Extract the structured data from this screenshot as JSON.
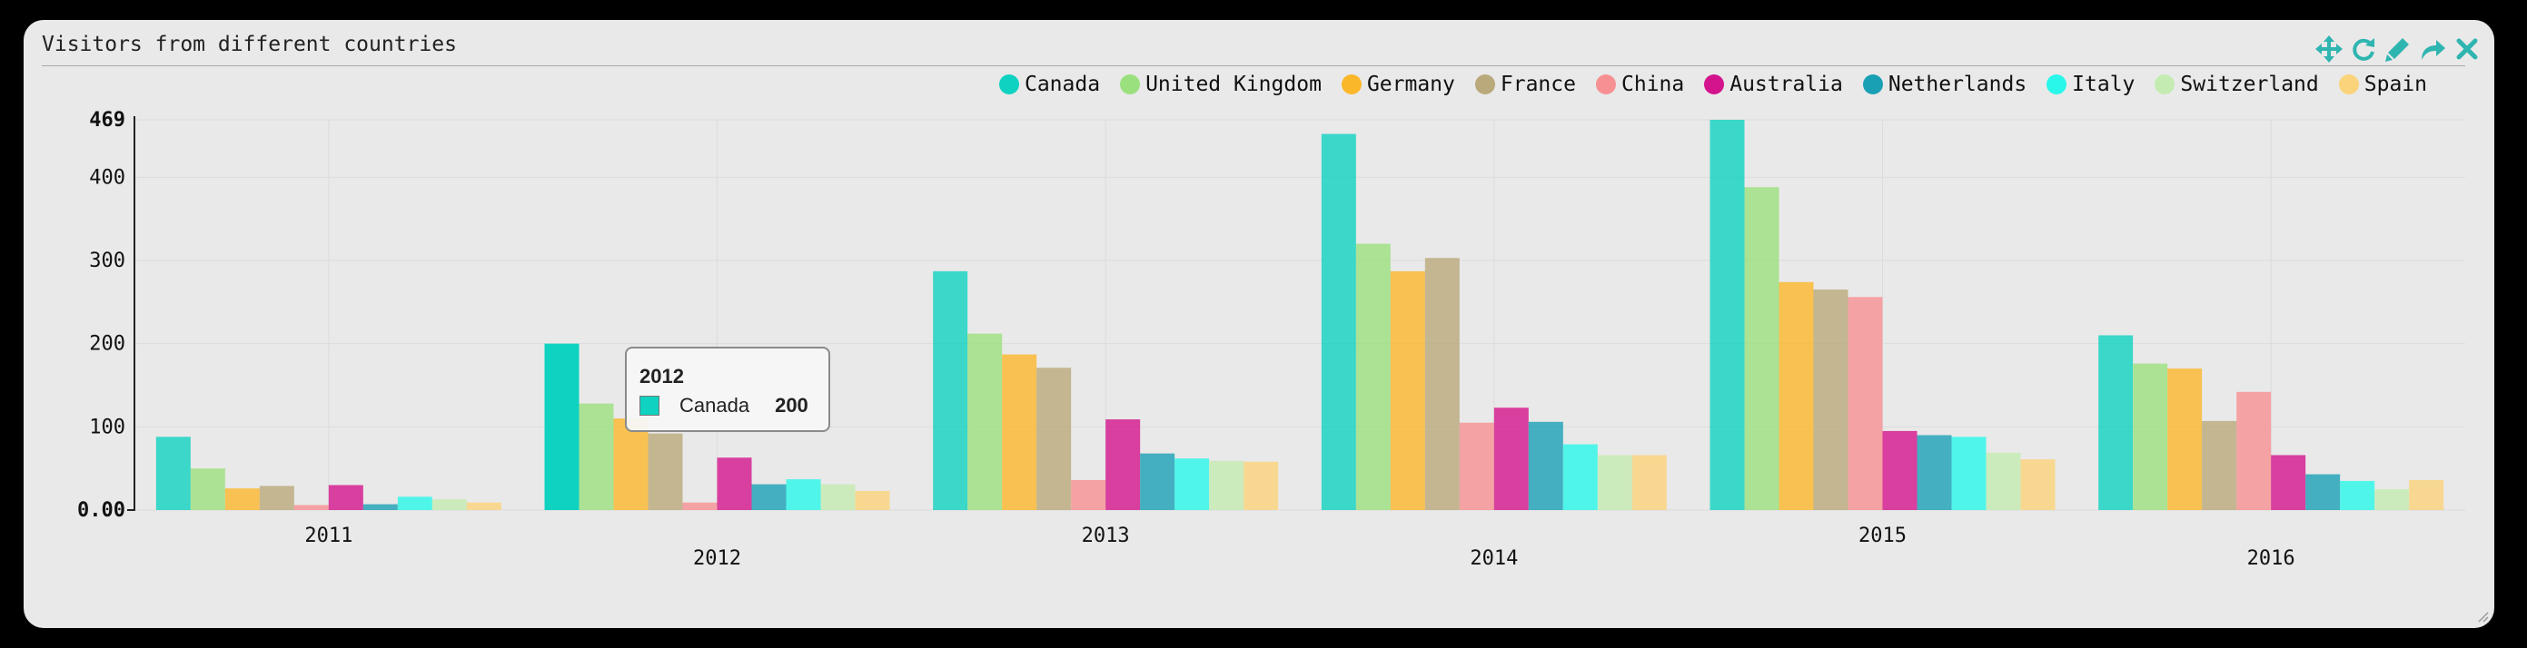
{
  "window": {
    "title": "Visitors from different countries"
  },
  "toolbar": [
    {
      "name": "move-icon"
    },
    {
      "name": "refresh-icon"
    },
    {
      "name": "edit-icon"
    },
    {
      "name": "share-icon"
    },
    {
      "name": "close-icon"
    }
  ],
  "colors": {
    "accent": "#2fb5b0",
    "series": [
      "#0fd2c1",
      "#9be07e",
      "#fbb72a",
      "#b9a97b",
      "#f79092",
      "#d3148c",
      "#1aa0b5",
      "#29f7ea",
      "#c4ebb2",
      "#fbd37a"
    ]
  },
  "tooltip": {
    "title": "2012",
    "series": "Canada",
    "value": "200",
    "color": "#0fd2c1"
  },
  "chart_data": {
    "type": "bar",
    "title": "Visitors from different countries",
    "xlabel": "",
    "ylabel": "",
    "ylim": [
      0,
      469
    ],
    "y_ticks": [
      "0.00",
      "100",
      "200",
      "300",
      "400",
      "469"
    ],
    "grid": true,
    "legend_position": "top-right",
    "categories": [
      "2011",
      "2012",
      "2013",
      "2014",
      "2015",
      "2016"
    ],
    "series": [
      {
        "name": "Canada",
        "values": [
          88,
          200,
          287,
          452,
          469,
          210
        ]
      },
      {
        "name": "United Kingdom",
        "values": [
          50,
          128,
          212,
          320,
          388,
          176
        ]
      },
      {
        "name": "Germany",
        "values": [
          26,
          110,
          187,
          287,
          274,
          170
        ]
      },
      {
        "name": "France",
        "values": [
          29,
          92,
          171,
          303,
          265,
          107
        ]
      },
      {
        "name": "China",
        "values": [
          6,
          9,
          36,
          105,
          256,
          142
        ]
      },
      {
        "name": "Australia",
        "values": [
          30,
          63,
          109,
          123,
          95,
          66
        ]
      },
      {
        "name": "Netherlands",
        "values": [
          7,
          31,
          68,
          106,
          90,
          43
        ]
      },
      {
        "name": "Italy",
        "values": [
          16,
          37,
          62,
          79,
          88,
          35
        ]
      },
      {
        "name": "Switzerland",
        "values": [
          13,
          31,
          59,
          66,
          69,
          25
        ]
      },
      {
        "name": "Spain",
        "values": [
          9,
          23,
          58,
          66,
          61,
          36
        ]
      }
    ]
  }
}
